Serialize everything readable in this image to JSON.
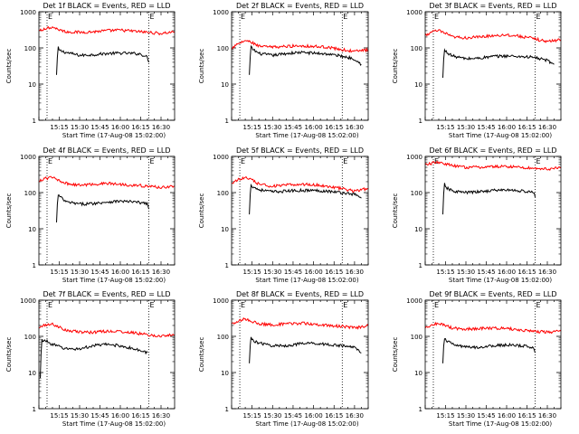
{
  "chart_data": [
    {
      "type": "line",
      "title": "Det 1f BLACK = Events, RED = LLD",
      "xlabel": "Start Time (17-Aug-08 15:02:00)",
      "ylabel": "Counts/sec",
      "yscale": "log",
      "ylim": [
        1,
        1000
      ],
      "x_ticks": [
        "15:15",
        "15:30",
        "15:45",
        "16:00",
        "16:15",
        "16:30"
      ],
      "y_ticks": [
        "1",
        "10",
        "100",
        "1000"
      ],
      "markers": [
        {
          "label": "E",
          "time": "15:06"
        },
        {
          "label": "E",
          "time": "16:21"
        }
      ],
      "grid": "dotted",
      "series": [
        {
          "name": "Events",
          "color": "#000000",
          "x": [
            "15:13",
            "15:14",
            "15:15",
            "15:20",
            "15:30",
            "15:40",
            "15:50",
            "16:00",
            "16:10",
            "16:15",
            "16:20",
            "16:21"
          ],
          "y": [
            18,
            105,
            85,
            75,
            62,
            65,
            70,
            72,
            70,
            68,
            55,
            40
          ]
        },
        {
          "name": "LLD",
          "color": "#ff0000",
          "x": [
            "15:00",
            "15:05",
            "15:10",
            "15:15",
            "15:20",
            "15:30",
            "15:40",
            "15:50",
            "16:00",
            "16:10",
            "16:20",
            "16:30",
            "16:40"
          ],
          "y": [
            300,
            350,
            380,
            320,
            280,
            270,
            280,
            300,
            310,
            290,
            270,
            250,
            280
          ]
        }
      ]
    },
    {
      "type": "line",
      "title": "Det 2f BLACK = Events, RED = LLD",
      "xlabel": "Start Time (17-Aug-08 15:02:00)",
      "ylabel": "Counts/sec",
      "yscale": "log",
      "ylim": [
        1,
        1000
      ],
      "x_ticks": [
        "15:15",
        "15:30",
        "15:45",
        "16:00",
        "16:15",
        "16:30"
      ],
      "y_ticks": [
        "1",
        "10",
        "100",
        "1000"
      ],
      "markers": [
        {
          "label": "E",
          "time": "15:06"
        },
        {
          "label": "E",
          "time": "16:21"
        }
      ],
      "grid": "dotted",
      "series": [
        {
          "name": "Events",
          "color": "#000000",
          "x": [
            "15:13",
            "15:14",
            "15:15",
            "15:20",
            "15:30",
            "15:40",
            "15:50",
            "16:00",
            "16:10",
            "16:20",
            "16:30",
            "16:35"
          ],
          "y": [
            18,
            110,
            95,
            70,
            62,
            70,
            75,
            72,
            68,
            60,
            50,
            35
          ]
        },
        {
          "name": "LLD",
          "color": "#ff0000",
          "x": [
            "15:00",
            "15:05",
            "15:10",
            "15:15",
            "15:20",
            "15:30",
            "15:40",
            "15:50",
            "16:00",
            "16:10",
            "16:20",
            "16:30",
            "16:40"
          ],
          "y": [
            100,
            130,
            160,
            140,
            110,
            105,
            110,
            115,
            110,
            105,
            90,
            80,
            90
          ]
        }
      ]
    },
    {
      "type": "line",
      "title": "Det 3f BLACK = Events, RED = LLD",
      "xlabel": "Start Time (17-Aug-08 15:02:00)",
      "ylabel": "Counts/sec",
      "yscale": "log",
      "ylim": [
        1,
        1000
      ],
      "x_ticks": [
        "15:15",
        "15:30",
        "15:45",
        "16:00",
        "16:15",
        "16:30"
      ],
      "y_ticks": [
        "1",
        "10",
        "100",
        "1000"
      ],
      "markers": [
        {
          "label": "E",
          "time": "15:06"
        },
        {
          "label": "E",
          "time": "16:21"
        }
      ],
      "grid": "dotted",
      "series": [
        {
          "name": "Events",
          "color": "#000000",
          "x": [
            "15:13",
            "15:14",
            "15:15",
            "15:20",
            "15:30",
            "15:40",
            "15:50",
            "16:00",
            "16:10",
            "16:20",
            "16:30",
            "16:35"
          ],
          "y": [
            15,
            90,
            80,
            60,
            50,
            52,
            58,
            60,
            58,
            55,
            45,
            35
          ]
        },
        {
          "name": "LLD",
          "color": "#ff0000",
          "x": [
            "15:00",
            "15:05",
            "15:10",
            "15:15",
            "15:20",
            "15:30",
            "15:40",
            "15:50",
            "16:00",
            "16:10",
            "16:20",
            "16:30",
            "16:40"
          ],
          "y": [
            220,
            280,
            300,
            250,
            200,
            190,
            200,
            220,
            230,
            210,
            180,
            150,
            170
          ]
        }
      ]
    },
    {
      "type": "line",
      "title": "Det 4f BLACK = Events, RED = LLD",
      "xlabel": "Start Time (17-Aug-08 15:02:00)",
      "ylabel": "Counts/sec",
      "yscale": "log",
      "ylim": [
        1,
        1000
      ],
      "x_ticks": [
        "15:15",
        "15:30",
        "15:45",
        "16:00",
        "16:15",
        "16:30"
      ],
      "y_ticks": [
        "1",
        "10",
        "100",
        "1000"
      ],
      "markers": [
        {
          "label": "E",
          "time": "15:06"
        },
        {
          "label": "E",
          "time": "16:21"
        }
      ],
      "grid": "dotted",
      "series": [
        {
          "name": "Events",
          "color": "#000000",
          "x": [
            "15:13",
            "15:14",
            "15:15",
            "15:20",
            "15:30",
            "15:40",
            "15:50",
            "16:00",
            "16:10",
            "16:20",
            "16:21"
          ],
          "y": [
            15,
            90,
            80,
            55,
            48,
            50,
            55,
            58,
            55,
            50,
            35
          ]
        },
        {
          "name": "LLD",
          "color": "#ff0000",
          "x": [
            "15:00",
            "15:05",
            "15:10",
            "15:15",
            "15:20",
            "15:30",
            "15:40",
            "15:50",
            "16:00",
            "16:10",
            "16:20",
            "16:30",
            "16:40"
          ],
          "y": [
            200,
            250,
            260,
            220,
            180,
            160,
            170,
            180,
            170,
            160,
            150,
            140,
            150
          ]
        }
      ]
    },
    {
      "type": "line",
      "title": "Det 5f BLACK = Events, RED = LLD",
      "xlabel": "Start Time (17-Aug-08 15:02:00)",
      "ylabel": "Counts/sec",
      "yscale": "log",
      "ylim": [
        1,
        1000
      ],
      "x_ticks": [
        "15:15",
        "15:30",
        "15:45",
        "16:00",
        "16:15",
        "16:30"
      ],
      "y_ticks": [
        "1",
        "10",
        "100",
        "1000"
      ],
      "markers": [
        {
          "label": "E",
          "time": "15:06"
        },
        {
          "label": "E",
          "time": "16:21"
        }
      ],
      "grid": "dotted",
      "series": [
        {
          "name": "Events",
          "color": "#000000",
          "x": [
            "15:13",
            "15:14",
            "15:15",
            "15:20",
            "15:30",
            "15:40",
            "15:50",
            "16:00",
            "16:10",
            "16:20",
            "16:30",
            "16:35"
          ],
          "y": [
            25,
            180,
            150,
            120,
            105,
            110,
            115,
            115,
            110,
            100,
            90,
            70
          ]
        },
        {
          "name": "LLD",
          "color": "#ff0000",
          "x": [
            "15:00",
            "15:05",
            "15:10",
            "15:15",
            "15:20",
            "15:30",
            "15:40",
            "15:50",
            "16:00",
            "16:10",
            "16:20",
            "16:30",
            "16:40"
          ],
          "y": [
            180,
            230,
            260,
            220,
            170,
            150,
            160,
            170,
            165,
            150,
            130,
            110,
            130
          ]
        }
      ]
    },
    {
      "type": "line",
      "title": "Det 6f BLACK = Events, RED = LLD",
      "xlabel": "Start Time (17-Aug-08 15:02:00)",
      "ylabel": "Counts/sec",
      "yscale": "log",
      "ylim": [
        1,
        1000
      ],
      "x_ticks": [
        "15:15",
        "15:30",
        "15:45",
        "16:00",
        "16:15",
        "16:30"
      ],
      "y_ticks": [
        "1",
        "10",
        "100",
        "1000"
      ],
      "markers": [
        {
          "label": "E",
          "time": "15:06"
        },
        {
          "label": "E",
          "time": "16:21"
        }
      ],
      "grid": "dotted",
      "series": [
        {
          "name": "Events",
          "color": "#000000",
          "x": [
            "15:13",
            "15:14",
            "15:15",
            "15:20",
            "15:30",
            "15:40",
            "15:50",
            "16:00",
            "16:10",
            "16:20",
            "16:21"
          ],
          "y": [
            25,
            180,
            140,
            110,
            100,
            105,
            115,
            118,
            112,
            100,
            75
          ]
        },
        {
          "name": "LLD",
          "color": "#ff0000",
          "x": [
            "15:00",
            "15:05",
            "15:10",
            "15:15",
            "15:20",
            "15:30",
            "15:40",
            "15:50",
            "16:00",
            "16:10",
            "16:20",
            "16:30",
            "16:40"
          ],
          "y": [
            600,
            650,
            700,
            620,
            550,
            500,
            500,
            520,
            530,
            500,
            470,
            450,
            480
          ]
        }
      ]
    },
    {
      "type": "line",
      "title": "Det 7f BLACK = Events, RED = LLD",
      "xlabel": "Start Time (17-Aug-08 15:02:00)",
      "ylabel": "Counts/sec",
      "yscale": "log",
      "ylim": [
        1,
        1000
      ],
      "x_ticks": [
        "15:15",
        "15:30",
        "15:45",
        "16:00",
        "16:15",
        "16:30"
      ],
      "y_ticks": [
        "1",
        "10",
        "100",
        "1000"
      ],
      "markers": [
        {
          "label": "E",
          "time": "15:06"
        },
        {
          "label": "E",
          "time": "16:21"
        }
      ],
      "grid": "dotted",
      "series": [
        {
          "name": "Events",
          "color": "#000000",
          "x": [
            "15:01",
            "15:02",
            "15:05",
            "15:10",
            "15:20",
            "15:30",
            "15:40",
            "15:50",
            "16:00",
            "16:10",
            "16:20"
          ],
          "y": [
            7,
            80,
            75,
            60,
            45,
            45,
            55,
            60,
            55,
            45,
            35
          ]
        },
        {
          "name": "LLD",
          "color": "#ff0000",
          "x": [
            "15:00",
            "15:05",
            "15:10",
            "15:15",
            "15:20",
            "15:30",
            "15:40",
            "15:50",
            "16:00",
            "16:10",
            "16:20",
            "16:30",
            "16:40"
          ],
          "y": [
            170,
            210,
            220,
            180,
            150,
            130,
            130,
            140,
            135,
            125,
            110,
            100,
            110
          ]
        }
      ]
    },
    {
      "type": "line",
      "title": "Det 8f BLACK = Events, RED = LLD",
      "xlabel": "Start Time (17-Aug-08 15:02:00)",
      "ylabel": "Counts/sec",
      "yscale": "log",
      "ylim": [
        1,
        1000
      ],
      "x_ticks": [
        "15:15",
        "15:30",
        "15:45",
        "16:00",
        "16:15",
        "16:30"
      ],
      "y_ticks": [
        "1",
        "10",
        "100",
        "1000"
      ],
      "markers": [
        {
          "label": "E",
          "time": "15:06"
        },
        {
          "label": "E",
          "time": "16:21"
        }
      ],
      "grid": "dotted",
      "series": [
        {
          "name": "Events",
          "color": "#000000",
          "x": [
            "15:13",
            "15:14",
            "15:15",
            "15:20",
            "15:30",
            "15:40",
            "15:50",
            "16:00",
            "16:10",
            "16:20",
            "16:30",
            "16:35"
          ],
          "y": [
            18,
            100,
            80,
            65,
            55,
            55,
            62,
            65,
            60,
            55,
            50,
            35
          ]
        },
        {
          "name": "LLD",
          "color": "#ff0000",
          "x": [
            "15:00",
            "15:05",
            "15:10",
            "15:15",
            "15:20",
            "15:30",
            "15:40",
            "15:50",
            "16:00",
            "16:10",
            "16:20",
            "16:30",
            "16:40"
          ],
          "y": [
            220,
            270,
            300,
            260,
            220,
            210,
            220,
            230,
            220,
            200,
            190,
            170,
            200
          ]
        }
      ]
    },
    {
      "type": "line",
      "title": "Det 9f BLACK = Events, RED = LLD",
      "xlabel": "Start Time (17-Aug-08 15:02:00)",
      "ylabel": "Counts/sec",
      "yscale": "log",
      "ylim": [
        1,
        1000
      ],
      "x_ticks": [
        "15:15",
        "15:30",
        "15:45",
        "16:00",
        "16:15",
        "16:30"
      ],
      "y_ticks": [
        "1",
        "10",
        "100",
        "1000"
      ],
      "markers": [
        {
          "label": "E",
          "time": "15:06"
        },
        {
          "label": "E",
          "time": "16:21"
        }
      ],
      "grid": "dotted",
      "series": [
        {
          "name": "Events",
          "color": "#000000",
          "x": [
            "15:13",
            "15:14",
            "15:15",
            "15:20",
            "15:30",
            "15:40",
            "15:50",
            "16:00",
            "16:10",
            "16:20",
            "16:21"
          ],
          "y": [
            18,
            90,
            80,
            60,
            50,
            50,
            55,
            58,
            55,
            50,
            35
          ]
        },
        {
          "name": "LLD",
          "color": "#ff0000",
          "x": [
            "15:00",
            "15:05",
            "15:10",
            "15:15",
            "15:20",
            "15:30",
            "15:40",
            "15:50",
            "16:00",
            "16:10",
            "16:20",
            "16:30",
            "16:40"
          ],
          "y": [
            170,
            210,
            230,
            200,
            170,
            160,
            165,
            170,
            165,
            150,
            140,
            130,
            140
          ]
        }
      ]
    }
  ]
}
